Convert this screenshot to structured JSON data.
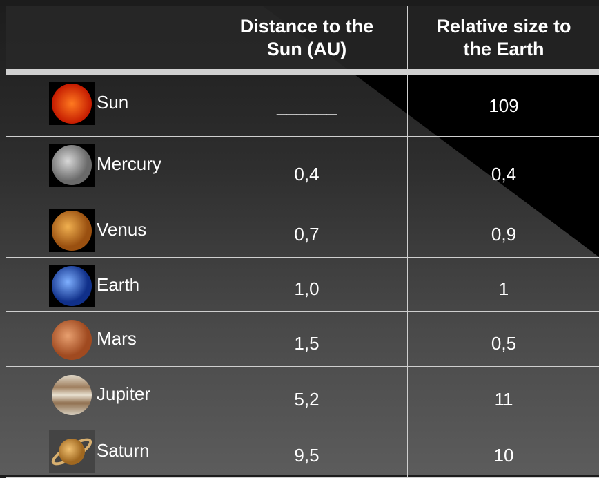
{
  "table": {
    "header": [
      [
        "Distance to the",
        "Sun (AU)"
      ],
      [
        "Relative size to",
        "the Earth"
      ]
    ],
    "rows": [
      {
        "name": "Sun",
        "distance": "______",
        "size": "109"
      },
      {
        "name": "Mercury",
        "distance": "0,4",
        "size": "0,4"
      },
      {
        "name": "Venus",
        "distance": "0,7",
        "size": "0,9"
      },
      {
        "name": "Earth",
        "distance": "1,0",
        "size": "1"
      },
      {
        "name": "Mars",
        "distance": "1,5",
        "size": "0,5"
      },
      {
        "name": "Jupiter",
        "distance": "5,2",
        "size": "11"
      },
      {
        "name": "Saturn",
        "distance": "9,5",
        "size": "10"
      }
    ]
  }
}
